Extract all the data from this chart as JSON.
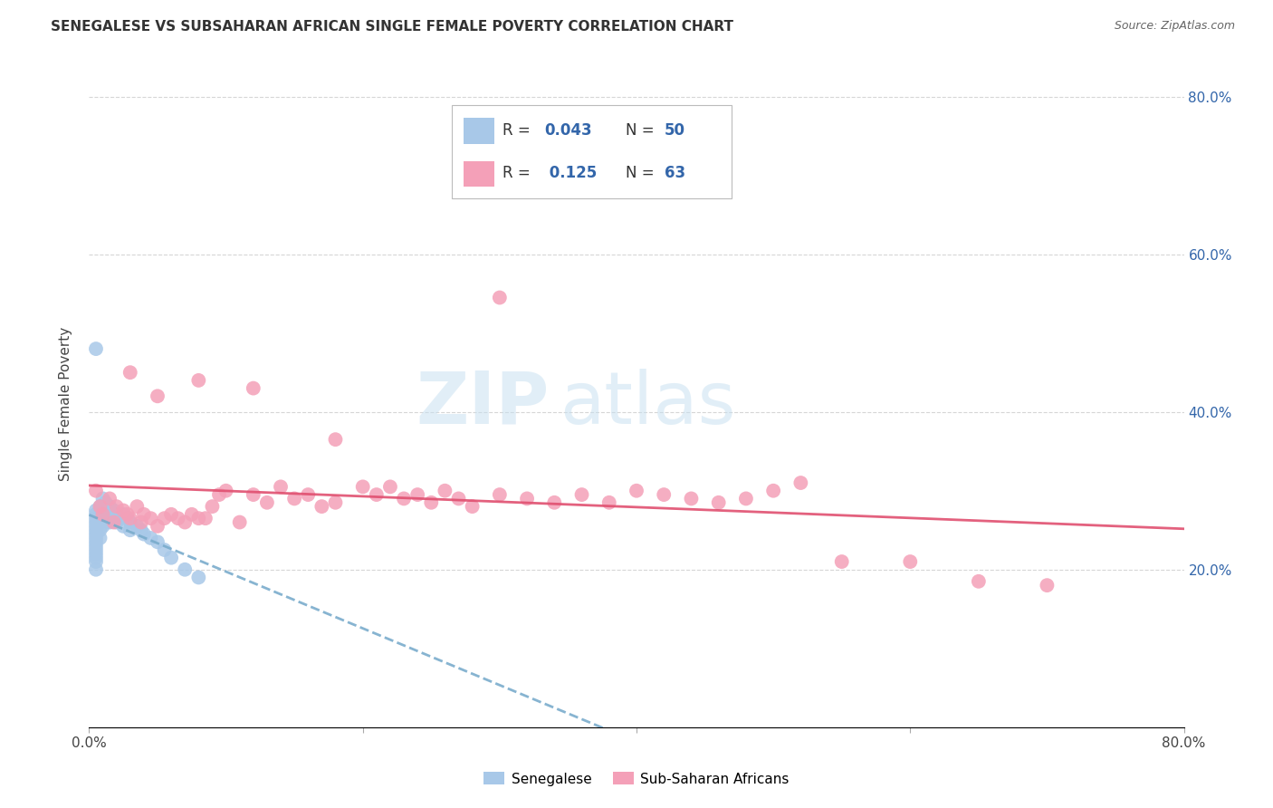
{
  "title": "SENEGALESE VS SUBSAHARAN AFRICAN SINGLE FEMALE POVERTY CORRELATION CHART",
  "source": "Source: ZipAtlas.com",
  "ylabel": "Single Female Poverty",
  "xlim": [
    0,
    0.8
  ],
  "ylim": [
    0,
    0.82
  ],
  "blue_color": "#a8c8e8",
  "pink_color": "#f4a0b8",
  "blue_line_color": "#7aaccc",
  "pink_line_color": "#e05070",
  "watermark_zip": "ZIP",
  "watermark_atlas": "atlas",
  "background_color": "#ffffff",
  "grid_color": "#cccccc",
  "senegalese_x": [
    0.005,
    0.005,
    0.005,
    0.005,
    0.005,
    0.005,
    0.005,
    0.005,
    0.005,
    0.005,
    0.005,
    0.005,
    0.005,
    0.005,
    0.005,
    0.008,
    0.008,
    0.008,
    0.008,
    0.008,
    0.01,
    0.01,
    0.01,
    0.01,
    0.012,
    0.012,
    0.012,
    0.015,
    0.015,
    0.015,
    0.018,
    0.018,
    0.02,
    0.02,
    0.022,
    0.025,
    0.025,
    0.028,
    0.03,
    0.03,
    0.035,
    0.038,
    0.04,
    0.045,
    0.05,
    0.055,
    0.06,
    0.07,
    0.08,
    0.005
  ],
  "senegalese_y": [
    0.275,
    0.27,
    0.265,
    0.26,
    0.255,
    0.25,
    0.245,
    0.24,
    0.235,
    0.23,
    0.225,
    0.22,
    0.215,
    0.21,
    0.2,
    0.28,
    0.27,
    0.26,
    0.25,
    0.24,
    0.29,
    0.275,
    0.265,
    0.255,
    0.285,
    0.275,
    0.265,
    0.28,
    0.27,
    0.26,
    0.275,
    0.265,
    0.27,
    0.26,
    0.265,
    0.27,
    0.255,
    0.265,
    0.26,
    0.25,
    0.255,
    0.25,
    0.245,
    0.24,
    0.235,
    0.225,
    0.215,
    0.2,
    0.19,
    0.48
  ],
  "subsaharan_x": [
    0.005,
    0.008,
    0.01,
    0.015,
    0.018,
    0.02,
    0.025,
    0.028,
    0.03,
    0.035,
    0.038,
    0.04,
    0.045,
    0.05,
    0.055,
    0.06,
    0.065,
    0.07,
    0.075,
    0.08,
    0.085,
    0.09,
    0.095,
    0.1,
    0.11,
    0.12,
    0.13,
    0.14,
    0.15,
    0.16,
    0.17,
    0.18,
    0.2,
    0.21,
    0.22,
    0.23,
    0.24,
    0.25,
    0.26,
    0.27,
    0.28,
    0.3,
    0.32,
    0.34,
    0.36,
    0.38,
    0.4,
    0.42,
    0.44,
    0.46,
    0.48,
    0.5,
    0.52,
    0.55,
    0.6,
    0.65,
    0.7,
    0.03,
    0.05,
    0.08,
    0.12,
    0.18,
    0.3
  ],
  "subsaharan_y": [
    0.3,
    0.28,
    0.27,
    0.29,
    0.26,
    0.28,
    0.275,
    0.27,
    0.265,
    0.28,
    0.26,
    0.27,
    0.265,
    0.255,
    0.265,
    0.27,
    0.265,
    0.26,
    0.27,
    0.265,
    0.265,
    0.28,
    0.295,
    0.3,
    0.26,
    0.295,
    0.285,
    0.305,
    0.29,
    0.295,
    0.28,
    0.285,
    0.305,
    0.295,
    0.305,
    0.29,
    0.295,
    0.285,
    0.3,
    0.29,
    0.28,
    0.295,
    0.29,
    0.285,
    0.295,
    0.285,
    0.3,
    0.295,
    0.29,
    0.285,
    0.29,
    0.3,
    0.31,
    0.21,
    0.21,
    0.185,
    0.18,
    0.45,
    0.42,
    0.44,
    0.43,
    0.365,
    0.545
  ],
  "ytick_positions": [
    0.2,
    0.4,
    0.6,
    0.8
  ],
  "ytick_labels": [
    "20.0%",
    "40.0%",
    "60.0%",
    "80.0%"
  ],
  "xtick_positions": [
    0.0,
    0.2,
    0.4,
    0.6,
    0.8
  ],
  "xtick_labels": [
    "0.0%",
    "",
    "",
    "",
    "80.0%"
  ]
}
